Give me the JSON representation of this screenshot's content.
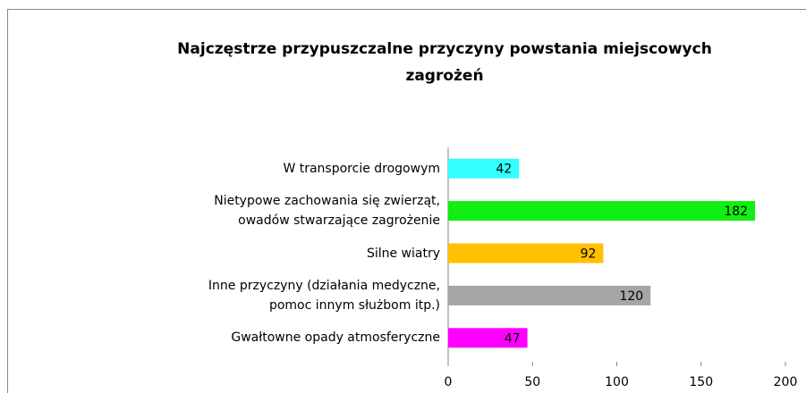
{
  "chart_data": {
    "type": "bar",
    "orientation": "horizontal",
    "title": "Najczęstrze przypuszczalne przyczyny powstania miejscowych zagrożeń",
    "categories": [
      "W transporcie drogowym",
      "Nietypowe zachowania się zwierząt,\nowadów stwarzające zagrożenie",
      "Silne wiatry",
      "Inne przyczyny (działania medyczne,\npomoc innym służbom itp.)",
      "Gwałtowne opady atmosferyczne"
    ],
    "values": [
      42,
      182,
      92,
      120,
      47
    ],
    "colors": [
      "#33ffff",
      "#11ee11",
      "#ffc000",
      "#a6a6a6",
      "#ff00ff"
    ],
    "xlim": [
      0,
      200
    ],
    "xticks": [
      0,
      50,
      100,
      150,
      200
    ]
  }
}
